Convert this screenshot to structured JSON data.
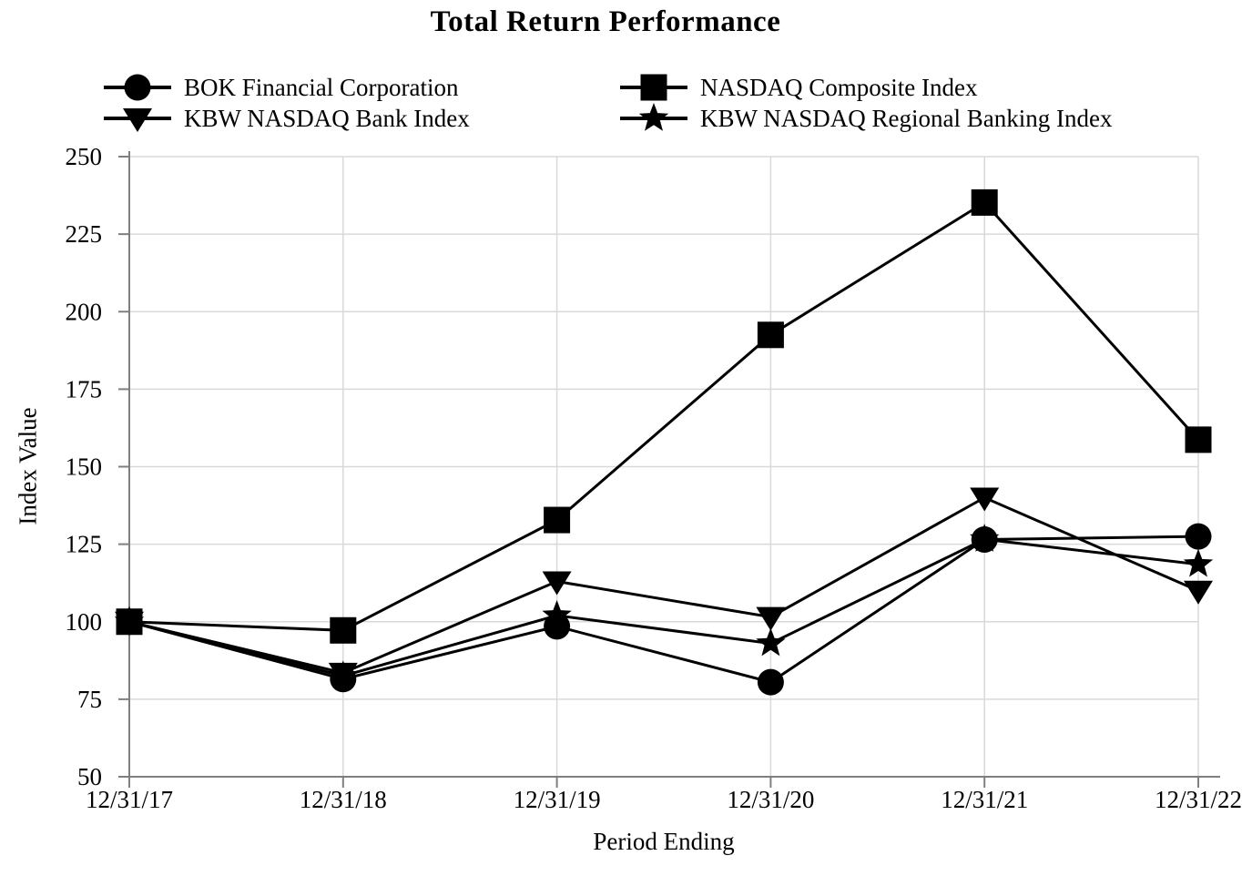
{
  "title": "Total Return Performance",
  "colors": {
    "series": "#000000",
    "gridline": "#d9d9d9",
    "axis": "#7f7f7f",
    "text": "#000000",
    "background": "#ffffff"
  },
  "chart_data": {
    "type": "line",
    "title": "Total Return Performance",
    "xlabel": "Period Ending",
    "ylabel": "Index Value",
    "categories": [
      "12/31/17",
      "12/31/18",
      "12/31/19",
      "12/31/20",
      "12/31/21",
      "12/31/22"
    ],
    "series": [
      {
        "name": "BOK Financial Corporation",
        "marker": "circle",
        "values": [
          100,
          81.5,
          98.5,
          80.5,
          126.5,
          127.5
        ]
      },
      {
        "name": "NASDAQ Composite Index",
        "marker": "square",
        "values": [
          100,
          97.2,
          132.8,
          192.5,
          235.2,
          158.7
        ]
      },
      {
        "name": "KBW NASDAQ Bank Index",
        "marker": "triangle-down",
        "values": [
          100,
          83.5,
          113.0,
          101.5,
          140.0,
          110.0
        ]
      },
      {
        "name": "KBW NASDAQ Regional Banking Index",
        "marker": "star",
        "values": [
          100,
          82.5,
          102.0,
          93.0,
          126.6,
          118.5
        ]
      }
    ],
    "ylim": [
      50,
      250
    ],
    "yticks": [
      50,
      75,
      100,
      125,
      150,
      175,
      200,
      225,
      250
    ],
    "grid": "both",
    "legend_position": "top",
    "legend_order": [
      "circle",
      "square",
      "triangle-down",
      "star"
    ]
  }
}
